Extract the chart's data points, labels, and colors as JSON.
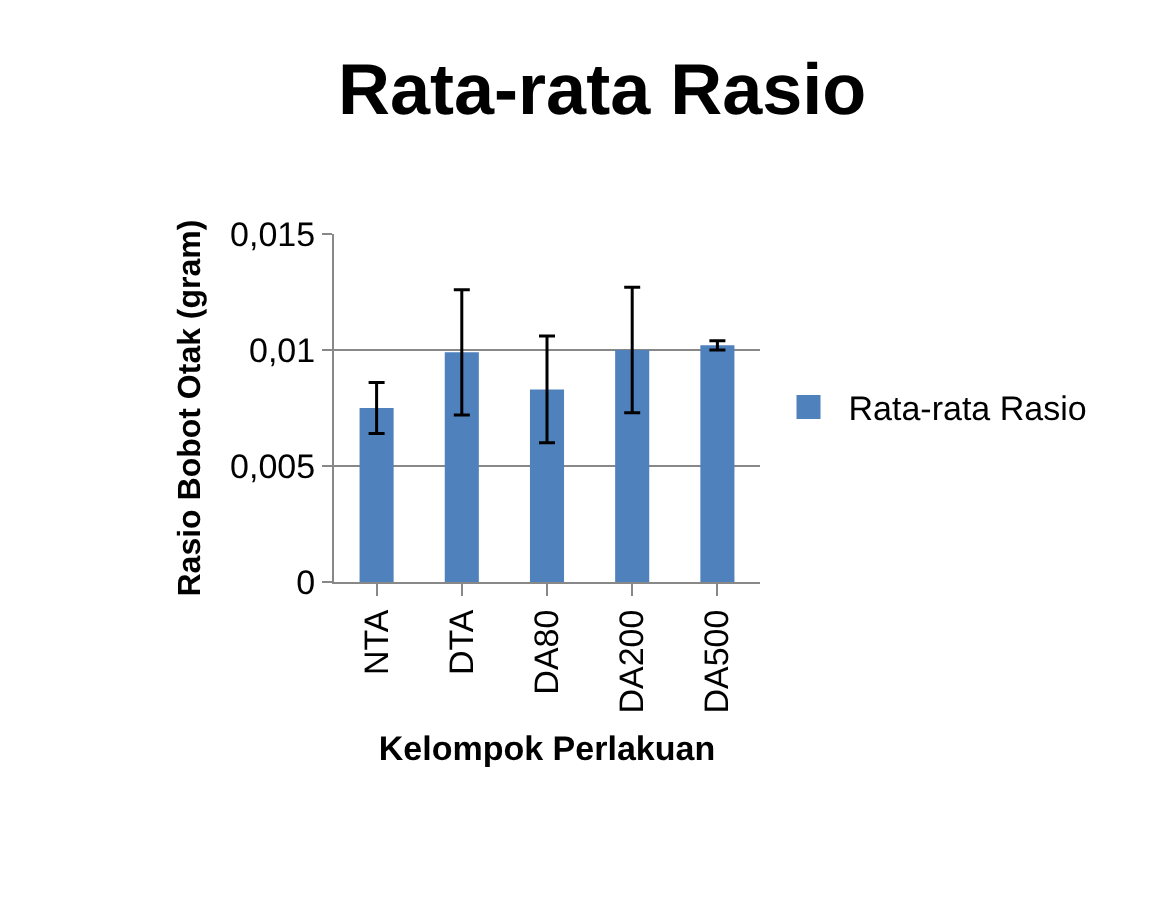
{
  "chart_data": {
    "type": "bar",
    "title": "Rata-rata Rasio",
    "xlabel": "Kelompok Perlakuan",
    "ylabel": "Rasio Bobot Otak (gram)",
    "categories": [
      "NTA",
      "DTA",
      "DA80",
      "DA200",
      "DA500"
    ],
    "series": [
      {
        "name": "Rata-rata Rasio",
        "color": "#4f81bd",
        "values": [
          0.0075,
          0.0099,
          0.0083,
          0.01,
          0.0102
        ],
        "errors": [
          0.0011,
          0.0027,
          0.0023,
          0.0027,
          0.0002
        ]
      }
    ],
    "ylim": [
      0,
      0.015
    ],
    "yticks": [
      0,
      {
        "value": 0.005,
        "label": "0,005"
      },
      {
        "value": 0.01,
        "label": "0,01"
      },
      {
        "value": 0.015,
        "label": "0,015"
      }
    ],
    "grid": "y",
    "legend": "right"
  }
}
